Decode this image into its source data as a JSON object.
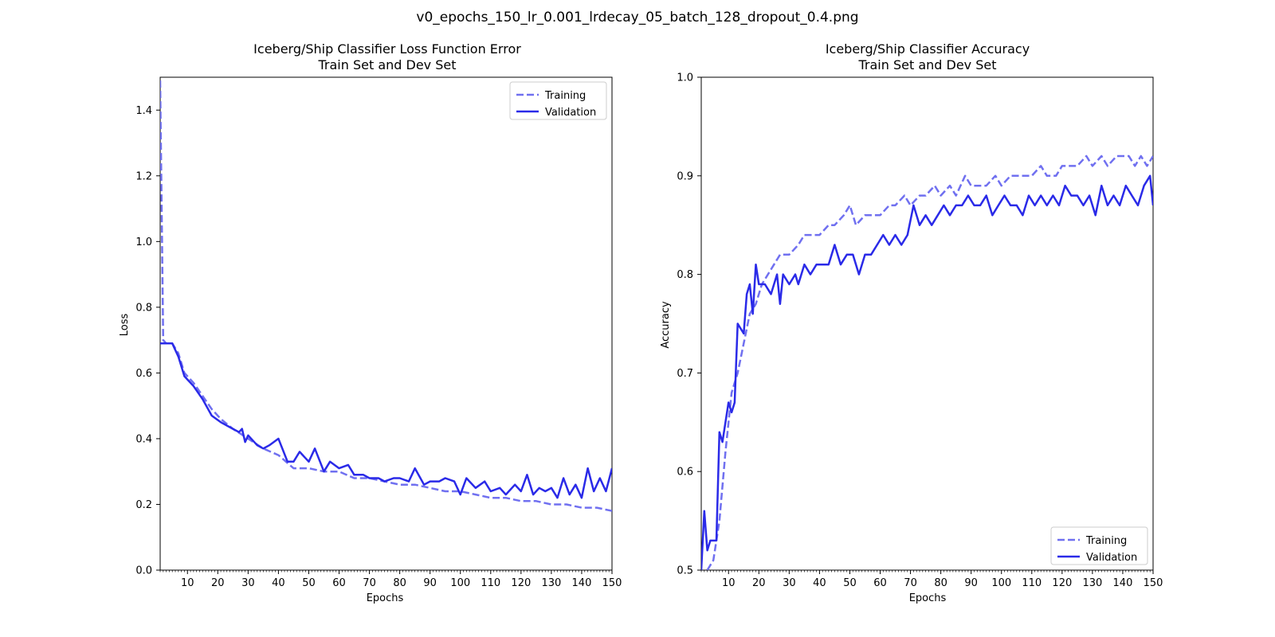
{
  "figure": {
    "title": "v0_epochs_150_lr_0.001_lrdecay_05_batch_128_dropout_0.4.png"
  },
  "colors": {
    "training": "#7070f0",
    "validation": "#2a2ae8",
    "axes": "#000000"
  },
  "chart_data": [
    {
      "type": "line",
      "title": "Iceberg/Ship Classifier Loss Function Error",
      "subtitle": "Train Set and Dev Set",
      "xlabel": "Epochs",
      "ylabel": "Loss",
      "xlim": [
        1,
        150
      ],
      "ylim": [
        0.0,
        1.5
      ],
      "xticks": [
        10,
        20,
        30,
        40,
        50,
        60,
        70,
        80,
        90,
        100,
        110,
        120,
        130,
        140,
        150
      ],
      "yticks": [
        0.0,
        0.2,
        0.4,
        0.6,
        0.8,
        1.0,
        1.2,
        1.4
      ],
      "ytick_labels": [
        "0.0",
        "0.2",
        "0.4",
        "0.6",
        "0.8",
        "1.0",
        "1.2",
        "1.4"
      ],
      "grid": false,
      "legend_position": "top-right",
      "series": [
        {
          "name": "Training",
          "style": "dashed",
          "x": [
            1,
            2,
            3,
            5,
            7,
            9,
            12,
            15,
            18,
            21,
            25,
            30,
            35,
            40,
            45,
            50,
            55,
            60,
            65,
            70,
            75,
            80,
            85,
            90,
            95,
            100,
            105,
            110,
            115,
            120,
            125,
            130,
            135,
            140,
            145,
            150
          ],
          "values": [
            1.49,
            0.7,
            0.69,
            0.69,
            0.66,
            0.6,
            0.57,
            0.53,
            0.49,
            0.46,
            0.43,
            0.4,
            0.37,
            0.35,
            0.31,
            0.31,
            0.3,
            0.3,
            0.28,
            0.28,
            0.27,
            0.26,
            0.26,
            0.25,
            0.24,
            0.24,
            0.23,
            0.22,
            0.22,
            0.21,
            0.21,
            0.2,
            0.2,
            0.19,
            0.19,
            0.18
          ]
        },
        {
          "name": "Validation",
          "style": "solid",
          "x": [
            1,
            3,
            5,
            7,
            9,
            12,
            15,
            18,
            21,
            25,
            27,
            28,
            29,
            30,
            33,
            35,
            37,
            40,
            43,
            45,
            47,
            50,
            52,
            55,
            57,
            60,
            63,
            65,
            68,
            70,
            73,
            75,
            78,
            80,
            83,
            85,
            88,
            90,
            93,
            95,
            98,
            100,
            102,
            105,
            108,
            110,
            113,
            115,
            118,
            120,
            122,
            124,
            126,
            128,
            130,
            132,
            134,
            136,
            138,
            140,
            142,
            144,
            146,
            148,
            150
          ],
          "values": [
            0.69,
            0.69,
            0.69,
            0.65,
            0.59,
            0.56,
            0.52,
            0.47,
            0.45,
            0.43,
            0.42,
            0.43,
            0.39,
            0.41,
            0.38,
            0.37,
            0.38,
            0.4,
            0.33,
            0.33,
            0.36,
            0.33,
            0.37,
            0.3,
            0.33,
            0.31,
            0.32,
            0.29,
            0.29,
            0.28,
            0.28,
            0.27,
            0.28,
            0.28,
            0.27,
            0.31,
            0.26,
            0.27,
            0.27,
            0.28,
            0.27,
            0.23,
            0.28,
            0.25,
            0.27,
            0.24,
            0.25,
            0.23,
            0.26,
            0.24,
            0.29,
            0.23,
            0.25,
            0.24,
            0.25,
            0.22,
            0.28,
            0.23,
            0.26,
            0.22,
            0.31,
            0.24,
            0.28,
            0.24,
            0.31
          ]
        }
      ]
    },
    {
      "type": "line",
      "title": "Iceberg/Ship Classifier Accuracy",
      "subtitle": "Train Set and Dev Set",
      "xlabel": "Epochs",
      "ylabel": "Accuracy",
      "xlim": [
        1,
        150
      ],
      "ylim": [
        0.5,
        1.0
      ],
      "xticks": [
        10,
        20,
        30,
        40,
        50,
        60,
        70,
        80,
        90,
        100,
        110,
        120,
        130,
        140,
        150
      ],
      "yticks": [
        0.5,
        0.6,
        0.7,
        0.8,
        0.9,
        1.0
      ],
      "ytick_labels": [
        "0.5",
        "0.6",
        "0.7",
        "0.8",
        "0.9",
        "1.0"
      ],
      "grid": false,
      "legend_position": "lower-right",
      "series": [
        {
          "name": "Training",
          "style": "dashed",
          "x": [
            3,
            5,
            7,
            9,
            11,
            13,
            15,
            17,
            19,
            21,
            23,
            25,
            27,
            30,
            33,
            35,
            37,
            40,
            43,
            45,
            48,
            50,
            52,
            55,
            58,
            60,
            63,
            65,
            68,
            70,
            73,
            75,
            78,
            80,
            83,
            85,
            88,
            90,
            93,
            95,
            98,
            100,
            103,
            105,
            108,
            110,
            113,
            115,
            118,
            120,
            123,
            125,
            128,
            130,
            133,
            135,
            138,
            140,
            142,
            144,
            146,
            148,
            150
          ],
          "values": [
            0.5,
            0.51,
            0.55,
            0.62,
            0.68,
            0.7,
            0.73,
            0.76,
            0.77,
            0.79,
            0.8,
            0.81,
            0.82,
            0.82,
            0.83,
            0.84,
            0.84,
            0.84,
            0.85,
            0.85,
            0.86,
            0.87,
            0.85,
            0.86,
            0.86,
            0.86,
            0.87,
            0.87,
            0.88,
            0.87,
            0.88,
            0.88,
            0.89,
            0.88,
            0.89,
            0.88,
            0.9,
            0.89,
            0.89,
            0.89,
            0.9,
            0.89,
            0.9,
            0.9,
            0.9,
            0.9,
            0.91,
            0.9,
            0.9,
            0.91,
            0.91,
            0.91,
            0.92,
            0.91,
            0.92,
            0.91,
            0.92,
            0.92,
            0.92,
            0.91,
            0.92,
            0.91,
            0.92
          ]
        },
        {
          "name": "Validation",
          "style": "solid",
          "x": [
            1,
            2,
            3,
            4,
            6,
            7,
            8,
            9,
            10,
            11,
            12,
            13,
            15,
            16,
            17,
            18,
            19,
            20,
            22,
            24,
            26,
            27,
            28,
            30,
            32,
            33,
            35,
            37,
            39,
            41,
            43,
            45,
            47,
            49,
            51,
            53,
            55,
            57,
            59,
            61,
            63,
            65,
            67,
            69,
            71,
            73,
            75,
            77,
            79,
            81,
            83,
            85,
            87,
            89,
            91,
            93,
            95,
            97,
            99,
            101,
            103,
            105,
            107,
            109,
            111,
            113,
            115,
            117,
            119,
            121,
            123,
            125,
            127,
            129,
            131,
            133,
            135,
            137,
            139,
            141,
            143,
            145,
            147,
            149,
            150
          ],
          "values": [
            0.5,
            0.56,
            0.52,
            0.53,
            0.53,
            0.64,
            0.63,
            0.65,
            0.67,
            0.66,
            0.67,
            0.75,
            0.74,
            0.78,
            0.79,
            0.76,
            0.81,
            0.79,
            0.79,
            0.78,
            0.8,
            0.77,
            0.8,
            0.79,
            0.8,
            0.79,
            0.81,
            0.8,
            0.81,
            0.81,
            0.81,
            0.83,
            0.81,
            0.82,
            0.82,
            0.8,
            0.82,
            0.82,
            0.83,
            0.84,
            0.83,
            0.84,
            0.83,
            0.84,
            0.87,
            0.85,
            0.86,
            0.85,
            0.86,
            0.87,
            0.86,
            0.87,
            0.87,
            0.88,
            0.87,
            0.87,
            0.88,
            0.86,
            0.87,
            0.88,
            0.87,
            0.87,
            0.86,
            0.88,
            0.87,
            0.88,
            0.87,
            0.88,
            0.87,
            0.89,
            0.88,
            0.88,
            0.87,
            0.88,
            0.86,
            0.89,
            0.87,
            0.88,
            0.87,
            0.89,
            0.88,
            0.87,
            0.89,
            0.9,
            0.87
          ]
        }
      ]
    }
  ]
}
